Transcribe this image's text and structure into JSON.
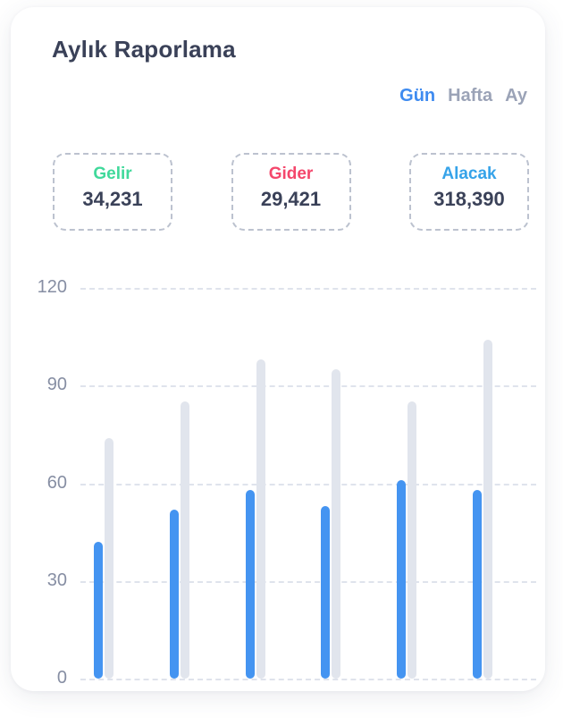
{
  "card": {
    "title": "Aylık Raporlama"
  },
  "tabs": [
    {
      "label": "Gün",
      "active": true
    },
    {
      "label": "Hafta",
      "active": false
    },
    {
      "label": "Ay",
      "active": false
    }
  ],
  "tab_colors": {
    "active": "#3e8bf0",
    "inactive": "#9ba3b7"
  },
  "stats": [
    {
      "label": "Gelir",
      "value": "34,231",
      "color": "#40d99b"
    },
    {
      "label": "Gider",
      "value": "29,421",
      "color": "#f4476c"
    },
    {
      "label": "Alacak",
      "value": "318,390",
      "color": "#36a3e9"
    }
  ],
  "chart_data": {
    "type": "bar",
    "title": "",
    "xlabel": "",
    "ylabel": "",
    "x_labels_visible": false,
    "categories": [
      "1",
      "2",
      "3",
      "4",
      "5",
      "6"
    ],
    "series": [
      {
        "name": "gray-background-bars",
        "color": "#e1e5ed",
        "values": [
          74,
          85,
          98,
          95,
          85,
          104
        ]
      },
      {
        "name": "blue-bars",
        "color": "#4494f1",
        "values": [
          42,
          52,
          58,
          53,
          61,
          58
        ]
      }
    ],
    "yticks": [
      0,
      30,
      60,
      90,
      120
    ],
    "ylim": [
      0,
      120
    ],
    "grid": "horizontal-dashed",
    "legend": "none"
  }
}
